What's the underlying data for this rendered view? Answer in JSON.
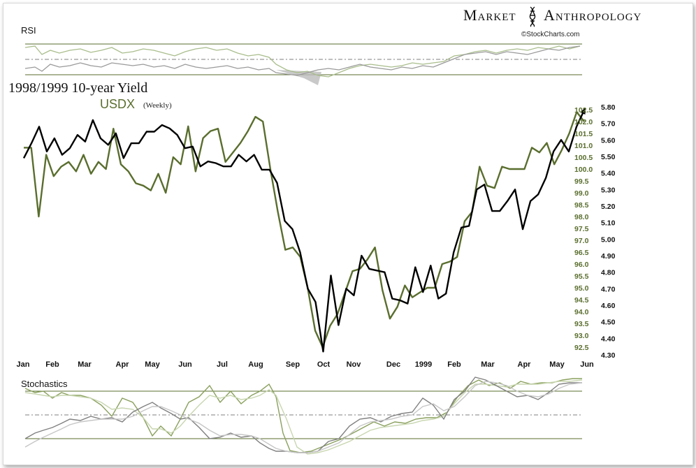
{
  "brand": {
    "word1": "Market",
    "word2": "Anthropology",
    "credit": "©StockCharts.com"
  },
  "chart_data": {
    "type": "line",
    "title": "1998/1999 10-year Yield",
    "subtitle": "USDX",
    "subtitle_note": "(Weekly)",
    "months": [
      "Jan",
      "Feb",
      "Mar",
      "Apr",
      "May",
      "Jun",
      "Jul",
      "Aug",
      "Sep",
      "Oct",
      "Nov",
      "Dec",
      "1999",
      "Feb",
      "Mar",
      "Apr",
      "May",
      "Jun"
    ],
    "yield_ticks": [
      "5.80",
      "5.70",
      "5.60",
      "5.50",
      "5.40",
      "5.30",
      "5.20",
      "5.10",
      "5.00",
      "4.90",
      "4.80",
      "4.70",
      "4.60",
      "4.50",
      "4.40",
      "4.30"
    ],
    "usdx_ticks": [
      "102.5",
      "102.0",
      "101.5",
      "101.0",
      "100.5",
      "100.0",
      "99.5",
      "99.0",
      "98.5",
      "98.0",
      "97.5",
      "97.0",
      "96.5",
      "96.0",
      "95.5",
      "95.0",
      "94.5",
      "94.0",
      "93.5",
      "93.0",
      "92.5"
    ],
    "series": [
      {
        "name": "1998/1999 10-year Yield",
        "color": "#000000",
        "axis": "right-outer",
        "ylim": [
          4.3,
          5.8
        ],
        "values": [
          5.49,
          5.58,
          5.68,
          5.53,
          5.61,
          5.51,
          5.55,
          5.63,
          5.59,
          5.72,
          5.61,
          5.57,
          5.64,
          5.49,
          5.58,
          5.58,
          5.65,
          5.65,
          5.69,
          5.67,
          5.63,
          5.55,
          5.56,
          5.44,
          5.47,
          5.46,
          5.44,
          5.44,
          5.51,
          5.47,
          5.51,
          5.42,
          5.42,
          5.34,
          5.11,
          5.06,
          4.92,
          4.7,
          4.62,
          4.32,
          4.78,
          4.48,
          4.7,
          4.66,
          4.9,
          4.82,
          4.81,
          4.8,
          4.64,
          4.63,
          4.61,
          4.83,
          4.68,
          4.84,
          4.64,
          4.67,
          4.92,
          5.07,
          5.08,
          5.3,
          5.33,
          5.17,
          5.17,
          5.23,
          5.3,
          5.06,
          5.23,
          5.27,
          5.37,
          5.53,
          5.6,
          5.53,
          5.68,
          5.78
        ]
      },
      {
        "name": "USDX",
        "color": "#5a6e2e",
        "axis": "right-inner",
        "ylim": [
          92.5,
          102.5
        ],
        "values": [
          100.9,
          100.9,
          98.0,
          100.6,
          99.7,
          100.1,
          100.3,
          99.9,
          100.6,
          99.8,
          100.3,
          100.0,
          101.7,
          100.2,
          99.9,
          99.4,
          99.3,
          99.1,
          99.8,
          99.0,
          100.5,
          100.2,
          101.8,
          99.9,
          101.3,
          101.6,
          101.7,
          100.3,
          100.7,
          101.1,
          101.6,
          102.2,
          102.0,
          100.0,
          98.2,
          96.6,
          96.7,
          96.3,
          95.0,
          93.2,
          92.5,
          93.4,
          93.9,
          94.8,
          95.7,
          95.8,
          96.2,
          96.7,
          94.9,
          93.7,
          94.2,
          95.1,
          94.6,
          94.8,
          95.0,
          95.0,
          96.0,
          96.1,
          96.3,
          97.8,
          98.2,
          100.1,
          99.3,
          99.2,
          100.1,
          100.0,
          100.0,
          100.0,
          100.9,
          100.7,
          101.1,
          100.2,
          100.8,
          101.5,
          102.4,
          102.0
        ]
      }
    ],
    "panels": [
      {
        "name": "RSI",
        "label": "RSI"
      },
      {
        "name": "Stochastics",
        "label": "Stochastics"
      }
    ]
  }
}
